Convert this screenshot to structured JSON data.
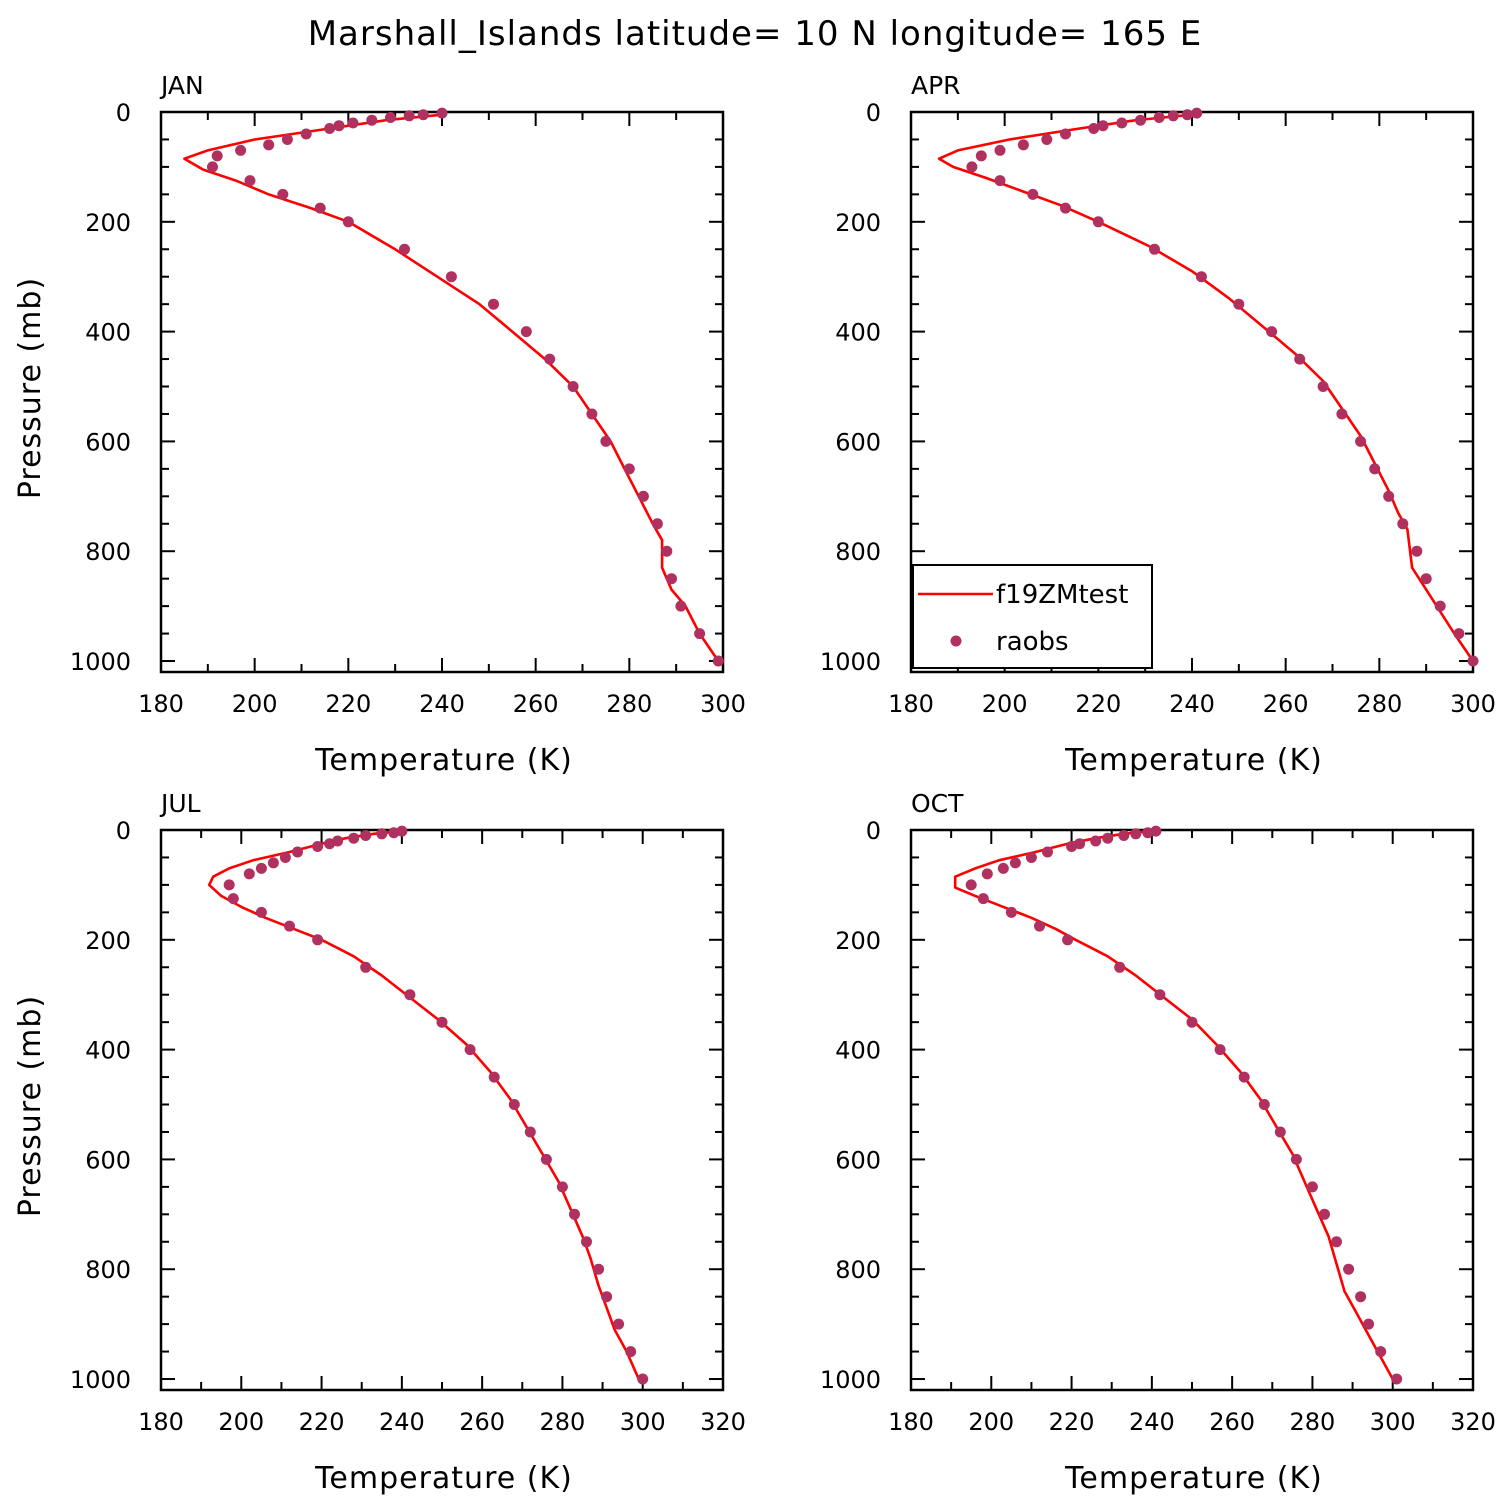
{
  "title": "Marshall_Islands  latitude= 10 N longitude= 165 E",
  "colors": {
    "model": "#ff0000",
    "obs": "#b03060"
  },
  "legend": {
    "placement": "lower-left of APR panel",
    "entries": [
      "f19ZMtest",
      "raobs"
    ]
  },
  "chart_data": [
    {
      "type": "line",
      "panel_title": "JAN",
      "xlabel": "Temperature (K)",
      "ylabel": "Pressure (mb)",
      "xlim": [
        180,
        300
      ],
      "ylim": [
        1000,
        0
      ],
      "xticks": [
        180,
        200,
        220,
        240,
        260,
        280,
        300
      ],
      "yticks": [
        0,
        200,
        400,
        600,
        800,
        1000
      ],
      "series": [
        {
          "name": "f19ZMtest",
          "style": "line",
          "points": [
            [
              240,
              5
            ],
            [
              228,
              15
            ],
            [
              216,
              30
            ],
            [
              200,
              50
            ],
            [
              190,
              70
            ],
            [
              185,
              85
            ],
            [
              189,
              105
            ],
            [
              196,
              125
            ],
            [
              203,
              150
            ],
            [
              212,
              175
            ],
            [
              220,
              200
            ],
            [
              230,
              250
            ],
            [
              239,
              300
            ],
            [
              248,
              350
            ],
            [
              255,
              400
            ],
            [
              262,
              450
            ],
            [
              268,
              500
            ],
            [
              272,
              550
            ],
            [
              276,
              600
            ],
            [
              279,
              650
            ],
            [
              282,
              700
            ],
            [
              285,
              750
            ],
            [
              287,
              780
            ],
            [
              287,
              830
            ],
            [
              289,
              870
            ],
            [
              292,
              900
            ],
            [
              295,
              950
            ],
            [
              299,
              1000
            ]
          ]
        },
        {
          "name": "raobs",
          "style": "markers",
          "points": [
            [
              240,
              2
            ],
            [
              236,
              5
            ],
            [
              233,
              7
            ],
            [
              229,
              10
            ],
            [
              225,
              15
            ],
            [
              221,
              20
            ],
            [
              218,
              25
            ],
            [
              216,
              30
            ],
            [
              211,
              40
            ],
            [
              207,
              50
            ],
            [
              203,
              60
            ],
            [
              197,
              70
            ],
            [
              192,
              80
            ],
            [
              191,
              100
            ],
            [
              199,
              125
            ],
            [
              206,
              150
            ],
            [
              214,
              175
            ],
            [
              220,
              200
            ],
            [
              232,
              250
            ],
            [
              242,
              300
            ],
            [
              251,
              350
            ],
            [
              258,
              400
            ],
            [
              263,
              450
            ],
            [
              268,
              500
            ],
            [
              272,
              550
            ],
            [
              275,
              600
            ],
            [
              280,
              650
            ],
            [
              283,
              700
            ],
            [
              286,
              750
            ],
            [
              288,
              800
            ],
            [
              289,
              850
            ],
            [
              291,
              900
            ],
            [
              295,
              950
            ],
            [
              299,
              1000
            ]
          ]
        }
      ]
    },
    {
      "type": "line",
      "panel_title": "APR",
      "xlabel": "Temperature (K)",
      "ylabel": "",
      "xlim": [
        180,
        300
      ],
      "ylim": [
        1000,
        0
      ],
      "xticks": [
        180,
        200,
        220,
        240,
        260,
        280,
        300
      ],
      "yticks": [
        0,
        200,
        400,
        600,
        800,
        1000
      ],
      "series": [
        {
          "name": "f19ZMtest",
          "style": "line",
          "points": [
            [
              240,
              5
            ],
            [
              228,
              15
            ],
            [
              216,
              30
            ],
            [
              201,
              50
            ],
            [
              190,
              70
            ],
            [
              186,
              85
            ],
            [
              189,
              100
            ],
            [
              196,
              120
            ],
            [
              204,
              145
            ],
            [
              212,
              170
            ],
            [
              220,
              200
            ],
            [
              231,
              245
            ],
            [
              240,
              290
            ],
            [
              248,
              340
            ],
            [
              255,
              390
            ],
            [
              262,
              440
            ],
            [
              268,
              490
            ],
            [
              272,
              540
            ],
            [
              276,
              590
            ],
            [
              279,
              640
            ],
            [
              282,
              690
            ],
            [
              284,
              730
            ],
            [
              286,
              760
            ],
            [
              287,
              830
            ],
            [
              290,
              870
            ],
            [
              293,
              910
            ],
            [
              296,
              950
            ],
            [
              300,
              1000
            ]
          ]
        },
        {
          "name": "raobs",
          "style": "markers",
          "points": [
            [
              241,
              2
            ],
            [
              239,
              5
            ],
            [
              236,
              7
            ],
            [
              233,
              10
            ],
            [
              229,
              15
            ],
            [
              225,
              20
            ],
            [
              221,
              25
            ],
            [
              219,
              30
            ],
            [
              213,
              40
            ],
            [
              209,
              50
            ],
            [
              204,
              60
            ],
            [
              199,
              70
            ],
            [
              195,
              80
            ],
            [
              193,
              100
            ],
            [
              199,
              125
            ],
            [
              206,
              150
            ],
            [
              213,
              175
            ],
            [
              220,
              200
            ],
            [
              232,
              250
            ],
            [
              242,
              300
            ],
            [
              250,
              350
            ],
            [
              257,
              400
            ],
            [
              263,
              450
            ],
            [
              268,
              500
            ],
            [
              272,
              550
            ],
            [
              276,
              600
            ],
            [
              279,
              650
            ],
            [
              282,
              700
            ],
            [
              285,
              750
            ],
            [
              288,
              800
            ],
            [
              290,
              850
            ],
            [
              293,
              900
            ],
            [
              297,
              950
            ],
            [
              300,
              1000
            ]
          ]
        }
      ]
    },
    {
      "type": "line",
      "panel_title": "JUL",
      "xlabel": "Temperature (K)",
      "ylabel": "Pressure (mb)",
      "xlim": [
        180,
        320
      ],
      "ylim": [
        1000,
        0
      ],
      "xticks": [
        180,
        200,
        220,
        240,
        260,
        280,
        300,
        320
      ],
      "yticks": [
        0,
        200,
        400,
        600,
        800,
        1000
      ],
      "series": [
        {
          "name": "f19ZMtest",
          "style": "line",
          "points": [
            [
              240,
              2
            ],
            [
              233,
              7
            ],
            [
              226,
              15
            ],
            [
              220,
              25
            ],
            [
              212,
              40
            ],
            [
              203,
              55
            ],
            [
              197,
              70
            ],
            [
              193,
              85
            ],
            [
              192,
              100
            ],
            [
              195,
              120
            ],
            [
              200,
              140
            ],
            [
              206,
              160
            ],
            [
              213,
              180
            ],
            [
              220,
              200
            ],
            [
              228,
              230
            ],
            [
              235,
              265
            ],
            [
              242,
              305
            ],
            [
              249,
              345
            ],
            [
              256,
              390
            ],
            [
              262,
              440
            ],
            [
              267,
              490
            ],
            [
              271,
              540
            ],
            [
              275,
              590
            ],
            [
              279,
              640
            ],
            [
              282,
              690
            ],
            [
              285,
              740
            ],
            [
              287,
              780
            ],
            [
              289,
              830
            ],
            [
              291,
              870
            ],
            [
              293,
              910
            ],
            [
              296,
              950
            ],
            [
              299,
              1000
            ]
          ]
        },
        {
          "name": "raobs",
          "style": "markers",
          "points": [
            [
              240,
              2
            ],
            [
              238,
              5
            ],
            [
              235,
              7
            ],
            [
              231,
              10
            ],
            [
              228,
              15
            ],
            [
              224,
              20
            ],
            [
              222,
              25
            ],
            [
              219,
              30
            ],
            [
              214,
              40
            ],
            [
              211,
              50
            ],
            [
              208,
              60
            ],
            [
              205,
              70
            ],
            [
              202,
              80
            ],
            [
              197,
              100
            ],
            [
              198,
              125
            ],
            [
              205,
              150
            ],
            [
              212,
              175
            ],
            [
              219,
              200
            ],
            [
              231,
              250
            ],
            [
              242,
              300
            ],
            [
              250,
              350
            ],
            [
              257,
              400
            ],
            [
              263,
              450
            ],
            [
              268,
              500
            ],
            [
              272,
              550
            ],
            [
              276,
              600
            ],
            [
              280,
              650
            ],
            [
              283,
              700
            ],
            [
              286,
              750
            ],
            [
              289,
              800
            ],
            [
              291,
              850
            ],
            [
              294,
              900
            ],
            [
              297,
              950
            ],
            [
              300,
              1000
            ]
          ]
        }
      ]
    },
    {
      "type": "line",
      "panel_title": "OCT",
      "xlabel": "Temperature (K)",
      "ylabel": "",
      "xlim": [
        180,
        320
      ],
      "ylim": [
        1000,
        0
      ],
      "xticks": [
        180,
        200,
        220,
        240,
        260,
        280,
        300,
        320
      ],
      "yticks": [
        0,
        200,
        400,
        600,
        800,
        1000
      ],
      "series": [
        {
          "name": "f19ZMtest",
          "style": "line",
          "points": [
            [
              240,
              2
            ],
            [
              233,
              7
            ],
            [
              226,
              15
            ],
            [
              219,
              25
            ],
            [
              211,
              40
            ],
            [
              202,
              55
            ],
            [
              196,
              70
            ],
            [
              191,
              85
            ],
            [
              191,
              105
            ],
            [
              196,
              120
            ],
            [
              203,
              140
            ],
            [
              210,
              160
            ],
            [
              216,
              180
            ],
            [
              221,
              200
            ],
            [
              229,
              230
            ],
            [
              236,
              265
            ],
            [
              243,
              305
            ],
            [
              250,
              345
            ],
            [
              256,
              390
            ],
            [
              262,
              440
            ],
            [
              267,
              490
            ],
            [
              271,
              540
            ],
            [
              275,
              590
            ],
            [
              278,
              640
            ],
            [
              281,
              690
            ],
            [
              284,
              740
            ],
            [
              286,
              790
            ],
            [
              288,
              840
            ],
            [
              291,
              880
            ],
            [
              294,
              920
            ],
            [
              297,
              960
            ],
            [
              300,
              1000
            ]
          ]
        },
        {
          "name": "raobs",
          "style": "markers",
          "points": [
            [
              241,
              2
            ],
            [
              239,
              5
            ],
            [
              236,
              7
            ],
            [
              233,
              10
            ],
            [
              229,
              15
            ],
            [
              226,
              20
            ],
            [
              222,
              25
            ],
            [
              220,
              30
            ],
            [
              214,
              40
            ],
            [
              210,
              50
            ],
            [
              206,
              60
            ],
            [
              203,
              70
            ],
            [
              199,
              80
            ],
            [
              195,
              100
            ],
            [
              198,
              125
            ],
            [
              205,
              150
            ],
            [
              212,
              175
            ],
            [
              219,
              200
            ],
            [
              232,
              250
            ],
            [
              242,
              300
            ],
            [
              250,
              350
            ],
            [
              257,
              400
            ],
            [
              263,
              450
            ],
            [
              268,
              500
            ],
            [
              272,
              550
            ],
            [
              276,
              600
            ],
            [
              280,
              650
            ],
            [
              283,
              700
            ],
            [
              286,
              750
            ],
            [
              289,
              800
            ],
            [
              292,
              850
            ],
            [
              294,
              900
            ],
            [
              297,
              950
            ],
            [
              301,
              1000
            ]
          ]
        }
      ]
    }
  ]
}
